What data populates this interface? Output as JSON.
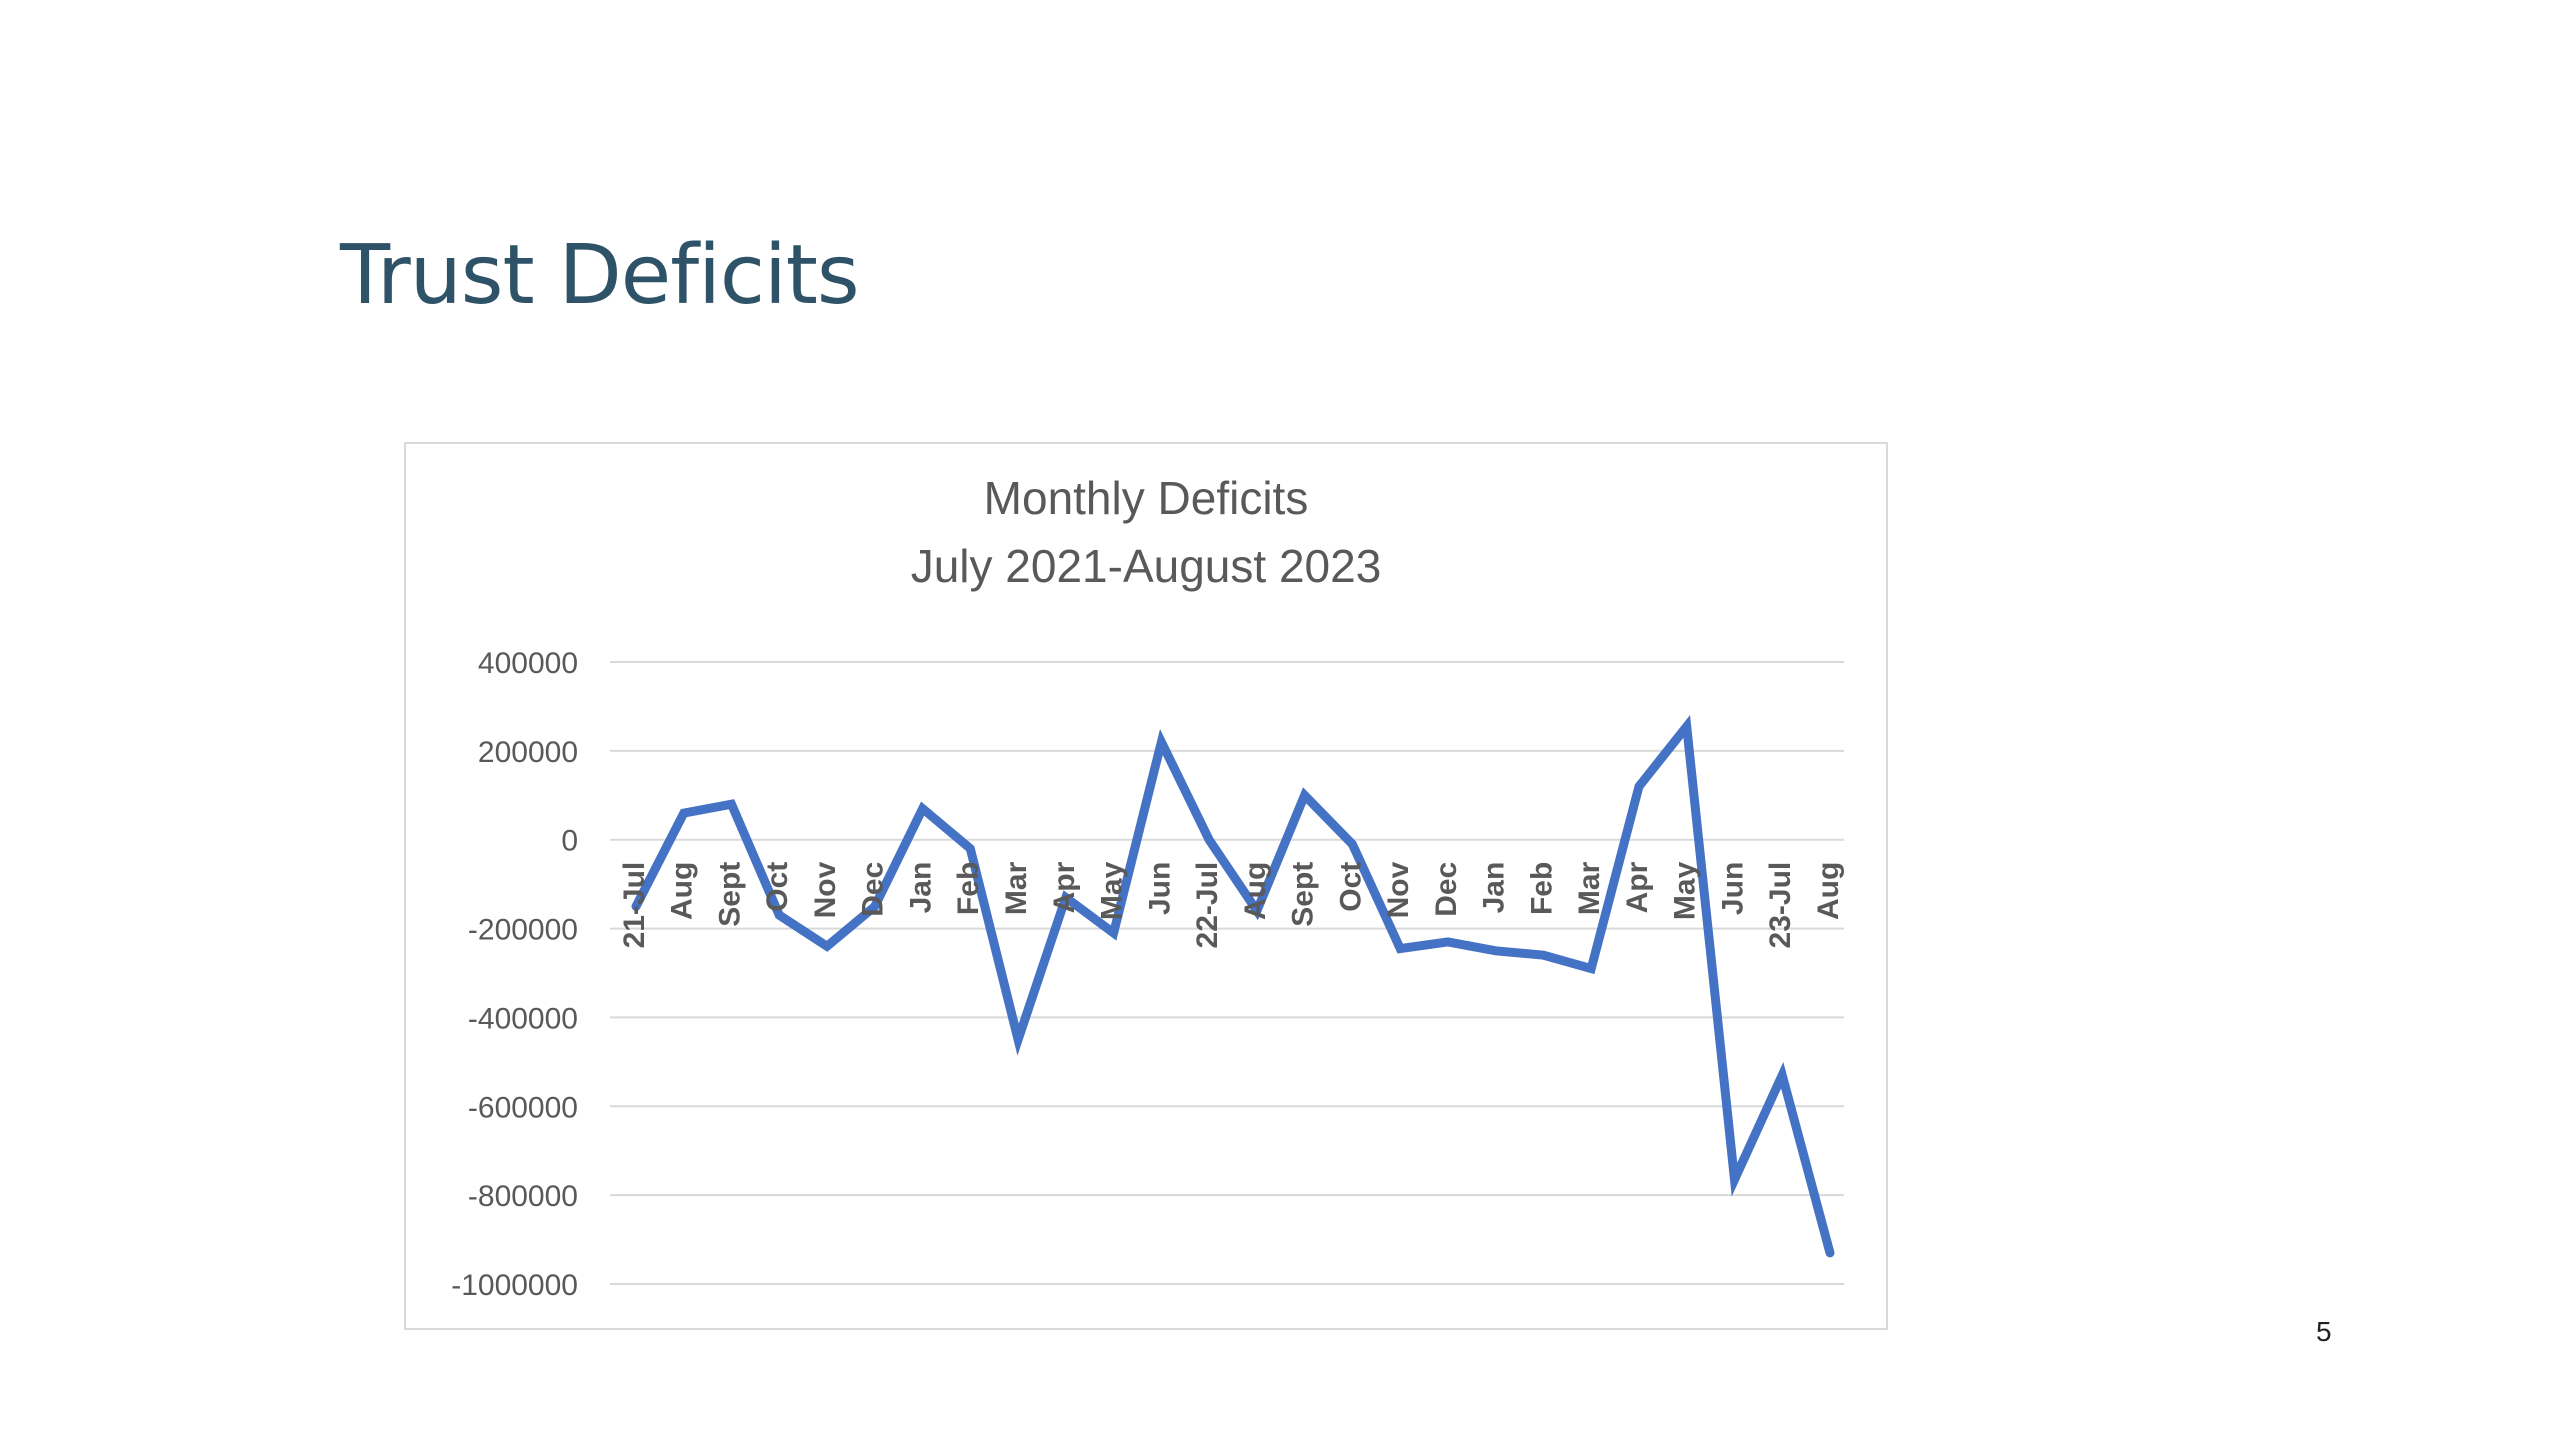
{
  "slide": {
    "title": "Trust Deficits",
    "page_number": "5"
  },
  "chart_data": {
    "type": "line",
    "title": "Monthly Deficits",
    "subtitle": "July 2021-August 2023",
    "xlabel": "",
    "ylabel": "",
    "categories": [
      "21-Jul",
      "Aug",
      "Sept",
      "Oct",
      "Nov",
      "Dec",
      "Jan",
      "Feb",
      "Mar",
      "Apr",
      "May",
      "Jun",
      "22-Jul",
      "Aug",
      "Sept",
      "Oct",
      "Nov",
      "Dec",
      "Jan",
      "Feb",
      "Mar",
      "Apr",
      "May",
      "Jun",
      "23-Jul",
      "Aug"
    ],
    "series": [
      {
        "color": "#4472c4",
        "values": [
          -150000,
          60000,
          80000,
          -170000,
          -240000,
          -150000,
          70000,
          -20000,
          -450000,
          -130000,
          -210000,
          220000,
          0,
          -160000,
          100000,
          -10000,
          -245000,
          -230000,
          -250000,
          -260000,
          -290000,
          120000,
          255000,
          -765000,
          -530000,
          -930000
        ]
      }
    ],
    "ylim": [
      -1000000,
      400000
    ],
    "yticks": [
      400000,
      200000,
      0,
      -200000,
      -400000,
      -600000,
      -800000,
      -1000000
    ],
    "grid": true,
    "legend": "none"
  }
}
